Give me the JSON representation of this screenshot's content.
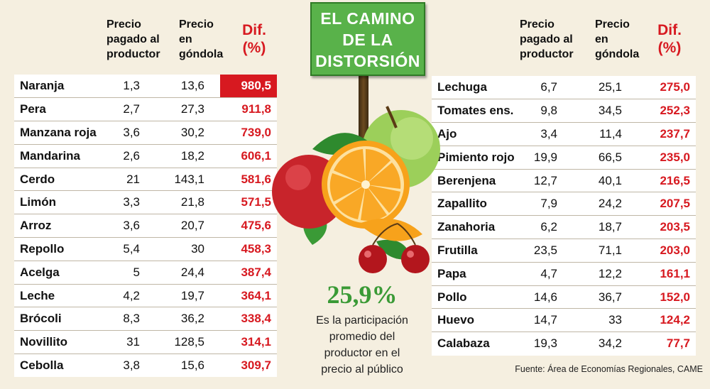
{
  "sign": {
    "line1": "EL CAMINO",
    "line2": "DE LA",
    "line3": "DISTORSIÓN"
  },
  "headers": {
    "precio_productor": [
      "Precio",
      "pagado al",
      "productor"
    ],
    "precio_gondola": [
      "Precio",
      "en",
      "góndola"
    ],
    "dif": [
      "Dif.",
      "(%)"
    ]
  },
  "left_table": [
    {
      "name": "Naranja",
      "productor": "1,3",
      "gondola": "13,6",
      "dif": "980,5",
      "highlight": true
    },
    {
      "name": "Pera",
      "productor": "2,7",
      "gondola": "27,3",
      "dif": "911,8"
    },
    {
      "name": "Manzana roja",
      "productor": "3,6",
      "gondola": "30,2",
      "dif": "739,0"
    },
    {
      "name": "Mandarina",
      "productor": "2,6",
      "gondola": "18,2",
      "dif": "606,1"
    },
    {
      "name": "Cerdo",
      "productor": "21",
      "gondola": "143,1",
      "dif": "581,6"
    },
    {
      "name": "Limón",
      "productor": "3,3",
      "gondola": "21,8",
      "dif": "571,5"
    },
    {
      "name": "Arroz",
      "productor": "3,6",
      "gondola": "20,7",
      "dif": "475,6"
    },
    {
      "name": "Repollo",
      "productor": "5,4",
      "gondola": "30",
      "dif": "458,3"
    },
    {
      "name": "Acelga",
      "productor": "5",
      "gondola": "24,4",
      "dif": "387,4"
    },
    {
      "name": "Leche",
      "productor": "4,2",
      "gondola": "19,7",
      "dif": "364,1"
    },
    {
      "name": "Brócoli",
      "productor": "8,3",
      "gondola": "36,2",
      "dif": "338,4"
    },
    {
      "name": "Novillito",
      "productor": "31",
      "gondola": "128,5",
      "dif": "314,1"
    },
    {
      "name": "Cebolla",
      "productor": "3,8",
      "gondola": "15,6",
      "dif": "309,7"
    }
  ],
  "right_table": [
    {
      "name": "Lechuga",
      "productor": "6,7",
      "gondola": "25,1",
      "dif": "275,0"
    },
    {
      "name": "Tomates ens.",
      "productor": "9,8",
      "gondola": "34,5",
      "dif": "252,3"
    },
    {
      "name": "Ajo",
      "productor": "3,4",
      "gondola": "11,4",
      "dif": "237,7"
    },
    {
      "name": "Pimiento rojo",
      "productor": "19,9",
      "gondola": "66,5",
      "dif": "235,0"
    },
    {
      "name": "Berenjena",
      "productor": "12,7",
      "gondola": "40,1",
      "dif": "216,5"
    },
    {
      "name": "Zapallito",
      "productor": "7,9",
      "gondola": "24,2",
      "dif": "207,5"
    },
    {
      "name": "Zanahoria",
      "productor": "6,2",
      "gondola": "18,7",
      "dif": "203,5"
    },
    {
      "name": "Frutilla",
      "productor": "23,5",
      "gondola": "71,1",
      "dif": "203,0"
    },
    {
      "name": "Papa",
      "productor": "4,7",
      "gondola": "12,2",
      "dif": "161,1"
    },
    {
      "name": "Pollo",
      "productor": "14,6",
      "gondola": "36,7",
      "dif": "152,0"
    },
    {
      "name": "Huevo",
      "productor": "14,7",
      "gondola": "33",
      "dif": "124,2"
    },
    {
      "name": "Calabaza",
      "productor": "19,3",
      "gondola": "34,2",
      "dif": "77,7"
    }
  ],
  "highlight_stat": {
    "value": "25,9%",
    "caption": [
      "Es la participación",
      "promedio del",
      "productor en el",
      "precio al público"
    ]
  },
  "source": "Fuente: Área de Economías Regionales, CAME",
  "colors": {
    "accent_red": "#d71920",
    "sign_green": "#59b24a",
    "stat_green": "#3a9a36",
    "background": "#f5efe0"
  }
}
